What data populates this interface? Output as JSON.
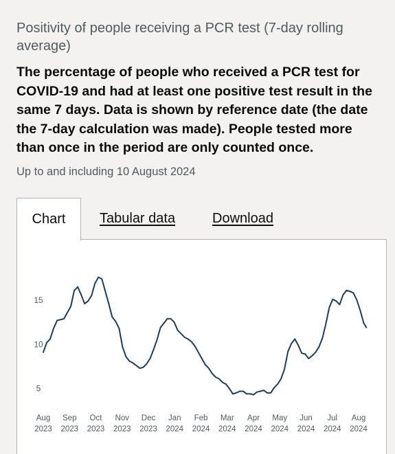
{
  "header": {
    "title": "Positivity of people receiving a PCR test (7-day rolling average)",
    "summary": "The percentage of people who received a PCR test for COVID-19 and had at least one positive test result in the same 7 days. Data is shown by reference date (the date the 7-day calculation was made). People tested more than once in the period are only counted once.",
    "date_note": "Up to and including 10 August 2024"
  },
  "tabs": {
    "chart": "Chart",
    "tabular": "Tabular data",
    "download": "Download"
  },
  "colors": {
    "line": "#1d3c5a",
    "tick_text": "#505a5f",
    "background": "#f3f2f1"
  },
  "chart_data": {
    "type": "line",
    "title": "",
    "xlabel": "",
    "ylabel": "",
    "ylim": [
      3.5,
      18.5
    ],
    "yticks": [
      "5",
      "10",
      "15"
    ],
    "xticks": [
      {
        "month": "Aug",
        "year": "2023"
      },
      {
        "month": "Sep",
        "year": "2023"
      },
      {
        "month": "Oct",
        "year": "2023"
      },
      {
        "month": "Nov",
        "year": "2023"
      },
      {
        "month": "Dec",
        "year": "2023"
      },
      {
        "month": "Jan",
        "year": "2024"
      },
      {
        "month": "Feb",
        "year": "2024"
      },
      {
        "month": "Mar",
        "year": "2024"
      },
      {
        "month": "Apr",
        "year": "2024"
      },
      {
        "month": "May",
        "year": "2024"
      },
      {
        "month": "Jun",
        "year": "2024"
      },
      {
        "month": "Jul",
        "year": "2024"
      },
      {
        "month": "Aug",
        "year": "2024"
      }
    ],
    "series": [
      {
        "x": [
          "2023-08-01",
          "2023-08-05",
          "2023-08-09",
          "2023-08-13",
          "2023-08-17",
          "2023-08-21",
          "2023-08-25",
          "2023-08-29",
          "2023-09-02",
          "2023-09-06",
          "2023-09-10",
          "2023-09-14",
          "2023-09-18",
          "2023-09-22",
          "2023-09-26",
          "2023-09-30",
          "2023-10-04",
          "2023-10-08",
          "2023-10-12",
          "2023-10-16",
          "2023-10-20",
          "2023-10-24",
          "2023-10-28",
          "2023-11-01",
          "2023-11-05",
          "2023-11-09",
          "2023-11-13",
          "2023-11-17",
          "2023-11-21",
          "2023-11-25",
          "2023-11-29",
          "2023-12-03",
          "2023-12-07",
          "2023-12-11",
          "2023-12-15",
          "2023-12-19",
          "2023-12-23",
          "2023-12-27",
          "2023-12-31",
          "2024-01-04",
          "2024-01-08",
          "2024-01-12",
          "2024-01-16",
          "2024-01-20",
          "2024-01-24",
          "2024-01-28",
          "2024-02-01",
          "2024-02-05",
          "2024-02-09",
          "2024-02-13",
          "2024-02-17",
          "2024-02-21",
          "2024-02-25",
          "2024-02-29",
          "2024-03-04",
          "2024-03-08",
          "2024-03-12",
          "2024-03-16",
          "2024-03-20",
          "2024-03-24",
          "2024-03-28",
          "2024-04-01",
          "2024-04-05",
          "2024-04-09",
          "2024-04-13",
          "2024-04-17",
          "2024-04-21",
          "2024-04-25",
          "2024-04-29",
          "2024-05-03",
          "2024-05-07",
          "2024-05-11",
          "2024-05-15",
          "2024-05-19",
          "2024-05-23",
          "2024-05-27",
          "2024-05-31",
          "2024-06-04",
          "2024-06-08",
          "2024-06-12",
          "2024-06-16",
          "2024-06-20",
          "2024-06-24",
          "2024-06-28",
          "2024-07-02",
          "2024-07-06",
          "2024-07-10",
          "2024-07-14",
          "2024-07-18",
          "2024-07-22",
          "2024-07-26",
          "2024-07-30",
          "2024-08-03",
          "2024-08-07",
          "2024-08-10"
        ],
        "y": [
          9.1,
          10.2,
          10.6,
          11.8,
          12.7,
          12.8,
          12.9,
          13.6,
          14.3,
          16.1,
          16.5,
          15.6,
          14.6,
          14.9,
          15.5,
          16.9,
          17.6,
          17.4,
          16.0,
          14.6,
          13.1,
          12.6,
          11.8,
          9.7,
          8.6,
          8.1,
          7.9,
          7.6,
          7.3,
          7.4,
          7.8,
          8.4,
          9.4,
          10.5,
          11.9,
          12.4,
          12.9,
          12.9,
          12.5,
          11.6,
          11.2,
          10.8,
          10.6,
          10.3,
          9.8,
          9.1,
          8.4,
          7.7,
          7.3,
          6.7,
          6.3,
          6.1,
          5.7,
          5.5,
          5.0,
          4.4,
          4.5,
          4.7,
          4.7,
          4.4,
          4.4,
          4.3,
          4.6,
          4.7,
          4.8,
          4.5,
          4.5,
          5.1,
          5.5,
          6.1,
          7.2,
          9.2,
          10.1,
          10.6,
          9.9,
          9.0,
          8.9,
          8.4,
          8.7,
          9.1,
          9.7,
          10.7,
          12.3,
          14.2,
          15.1,
          14.9,
          14.5,
          15.6,
          16.1,
          16.0,
          15.8,
          15.0,
          13.8,
          12.4,
          11.9
        ]
      }
    ],
    "grid": false,
    "legend": "none"
  }
}
